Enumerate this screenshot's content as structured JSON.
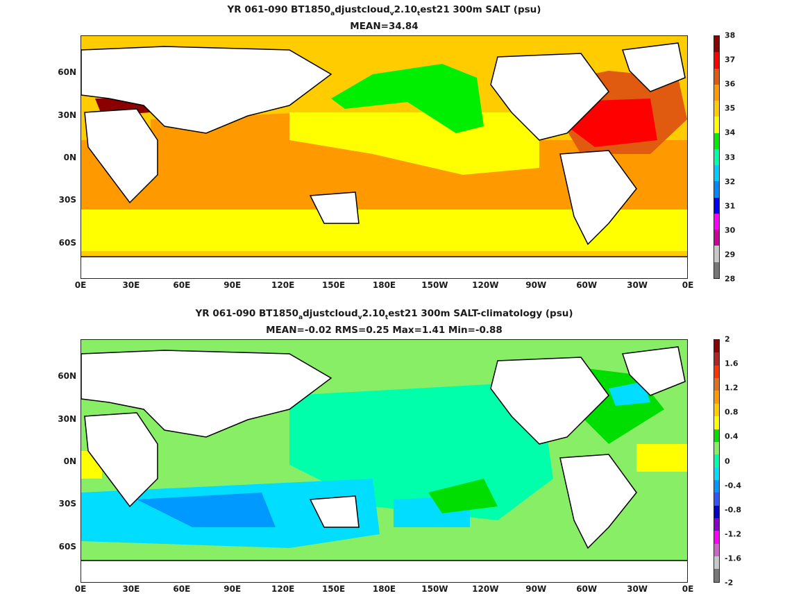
{
  "panels": [
    {
      "title_parts": [
        "YR 061-090 BT1850",
        "a",
        "djustcloud",
        "v",
        "2.10",
        "t",
        "est21 300m SALT (psu)"
      ],
      "subtitle": "MEAN=34.84",
      "colorbar": {
        "labels": [
          "38",
          "37",
          "36",
          "35",
          "34",
          "33",
          "32",
          "31",
          "30",
          "29",
          "28"
        ],
        "colors": [
          "#8b0000",
          "#ff0000",
          "#e05a10",
          "#ff9900",
          "#ffcc00",
          "#ffff00",
          "#00ee00",
          "#00ffaa",
          "#00ccff",
          "#0088ff",
          "#0000ff",
          "#ff00ff",
          "#cc0099",
          "#c8c8c8",
          "#777777"
        ]
      }
    },
    {
      "title_parts": [
        "YR 061-090 BT1850",
        "a",
        "djustcloud",
        "v",
        "2.10",
        "t",
        "est21 300m SALT-climatology (psu)"
      ],
      "subtitle": "MEAN=-0.02   RMS=0.25   Max=1.41   Min=-0.88",
      "colorbar": {
        "labels": [
          "2",
          "1.6",
          "1.2",
          "0.8",
          "0.4",
          "0",
          "-0.4",
          "-0.8",
          "-1.2",
          "-1.6",
          "-2"
        ],
        "colors": [
          "#8b0000",
          "#b22222",
          "#ff3300",
          "#e07020",
          "#ff9900",
          "#ffcc00",
          "#ffff00",
          "#00dd00",
          "#88ee66",
          "#00ffaa",
          "#00ddff",
          "#0099ff",
          "#3355ff",
          "#0000cc",
          "#8800cc",
          "#ff00ff",
          "#cc66cc",
          "#c8c8c8",
          "#777777"
        ]
      }
    }
  ],
  "x_ticks": [
    "0E",
    "30E",
    "60E",
    "90E",
    "120E",
    "150E",
    "180E",
    "150W",
    "120W",
    "90W",
    "60W",
    "30W",
    "0E"
  ],
  "y_ticks": [
    "60N",
    "30N",
    "0N",
    "30S",
    "60S"
  ],
  "colors": {
    "land": "#ffffff",
    "coast": "#000000"
  }
}
